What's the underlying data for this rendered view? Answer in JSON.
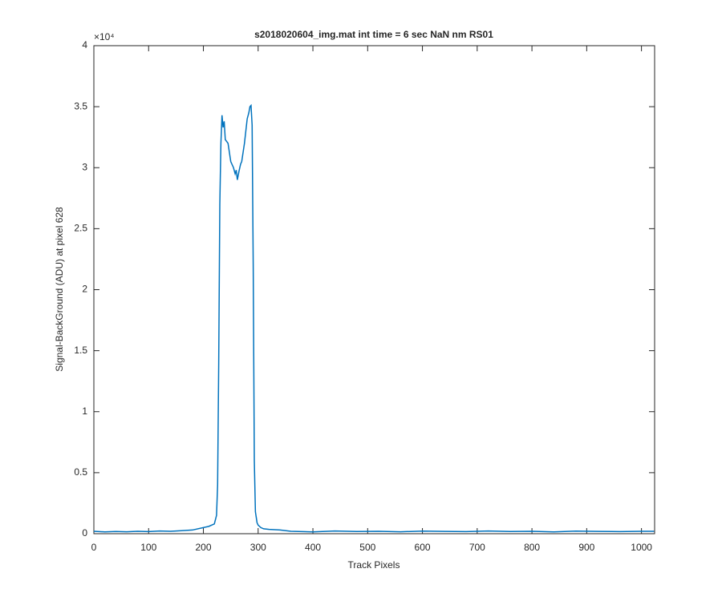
{
  "chart_data": {
    "type": "line",
    "title": "s2018020604_img.mat int time = 6 sec  NaN nm RS01",
    "x_label": "Track Pixels",
    "y_label": "Signal-BackGround (ADU) at pixel 628",
    "y_multiplier": "×10⁴",
    "x": [
      0,
      20,
      40,
      60,
      80,
      100,
      120,
      140,
      160,
      180,
      200,
      210,
      215,
      220,
      224,
      226,
      228,
      230,
      232,
      234,
      236,
      238,
      240,
      245,
      250,
      255,
      258,
      260,
      262,
      265,
      268,
      270,
      275,
      280,
      283,
      285,
      287,
      289,
      291,
      293,
      295,
      298,
      300,
      305,
      310,
      320,
      340,
      360,
      400,
      440,
      480,
      520,
      560,
      600,
      640,
      680,
      720,
      760,
      800,
      840,
      880,
      920,
      960,
      1000,
      1023
    ],
    "series": [
      {
        "color": "#0072bd",
        "values": [
          200,
          150,
          180,
          160,
          200,
          170,
          220,
          200,
          250,
          300,
          500,
          600,
          700,
          800,
          1500,
          4000,
          14000,
          27000,
          32000,
          34300,
          33300,
          33800,
          32300,
          32000,
          30500,
          30000,
          29500,
          29800,
          29000,
          29700,
          30300,
          30500,
          32000,
          34000,
          34500,
          35000,
          35100,
          33500,
          22000,
          6000,
          1800,
          900,
          700,
          500,
          400,
          350,
          300,
          200,
          150,
          220,
          180,
          200,
          160,
          210,
          190,
          170,
          220,
          180,
          200,
          150,
          210,
          190,
          170,
          200,
          200
        ]
      }
    ],
    "xlim": [
      0,
      1024
    ],
    "xticks": [
      0,
      100,
      200,
      300,
      400,
      500,
      600,
      700,
      800,
      900,
      1000
    ],
    "ylim": [
      0,
      40000
    ],
    "yticks": [
      {
        "value": 0,
        "label": "0"
      },
      {
        "value": 5000,
        "label": "0.5"
      },
      {
        "value": 10000,
        "label": "1"
      },
      {
        "value": 15000,
        "label": "1.5"
      },
      {
        "value": 20000,
        "label": "2"
      },
      {
        "value": 25000,
        "label": "2.5"
      },
      {
        "value": 30000,
        "label": "3"
      },
      {
        "value": 35000,
        "label": "3.5"
      },
      {
        "value": 40000,
        "label": "4"
      }
    ],
    "grid": false
  }
}
